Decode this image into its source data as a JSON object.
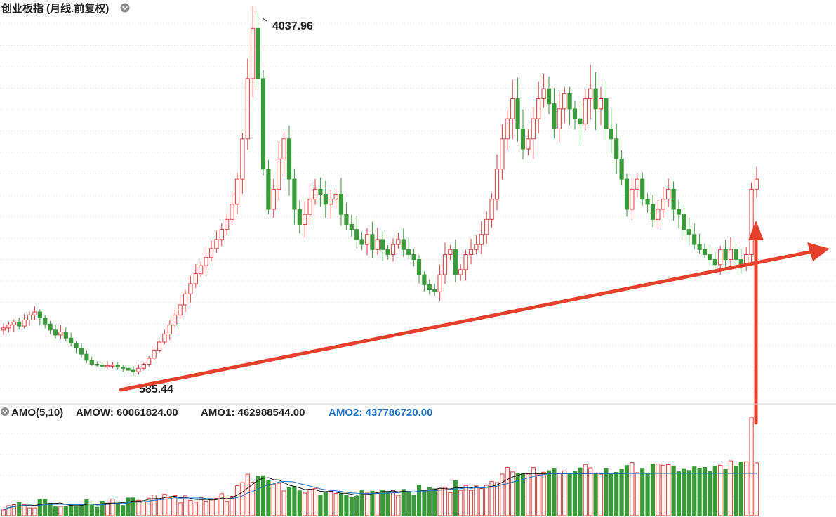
{
  "header": {
    "title": "创业板指 (月线.前复权)",
    "dropdown_icon": "chevron-down-icon"
  },
  "indicator_bar": {
    "name": "AMO(5,10)",
    "amow_label": "AMOW: 60061824.00",
    "amo1_label": "AMO1: 462988544.00",
    "amo2_label": "AMO2: 437786720.00",
    "toggle_icon": "chevron-down-icon"
  },
  "colors": {
    "up": "#e03a3a",
    "down": "#3a9a3a",
    "arrow": "#e4402b",
    "ma_black": "#111111",
    "ma_blue": "#1a73c8"
  },
  "chart_data": {
    "type": "candlestick",
    "title": "创业板指 (月线.前复权)",
    "annotations": [
      {
        "text": "4037.96",
        "note": "all-time high"
      },
      {
        "text": "585.44",
        "note": "all-time low"
      }
    ],
    "price_range": [
      300,
      4100
    ],
    "closes": [
      1020,
      1050,
      1080,
      1040,
      1100,
      1150,
      1180,
      1120,
      1060,
      1000,
      950,
      980,
      920,
      870,
      820,
      760,
      700,
      660,
      650,
      640,
      645,
      650,
      630,
      620,
      600,
      585,
      620,
      660,
      720,
      800,
      880,
      960,
      1050,
      1150,
      1250,
      1360,
      1460,
      1560,
      1640,
      1720,
      1810,
      1900,
      2000,
      2100,
      2250,
      2500,
      2900,
      3500,
      4000,
      3500,
      2600,
      2200,
      2400,
      2700,
      2900,
      2500,
      2200,
      2050,
      2150,
      2300,
      2400,
      2350,
      2250,
      2300,
      2350,
      2150,
      2050,
      2000,
      1900,
      1850,
      1950,
      1800,
      1900,
      1800,
      1750,
      1850,
      1900,
      1800,
      1750,
      1700,
      1550,
      1450,
      1400,
      1380,
      1550,
      1750,
      1800,
      1550,
      1600,
      1750,
      1800,
      1850,
      1950,
      2100,
      2300,
      2600,
      2900,
      3100,
      3300,
      3000,
      2800,
      2900,
      3100,
      3300,
      3400,
      3250,
      3000,
      3200,
      3350,
      3200,
      3100,
      3050,
      3300,
      3400,
      3200,
      3300,
      3000,
      2900,
      2700,
      2500,
      2200,
      2400,
      2500,
      2300,
      2250,
      2100,
      2200,
      2300,
      2400,
      2200,
      2150,
      2000,
      1950,
      1850,
      1800,
      1750,
      1700,
      1650,
      1800,
      1700,
      1800,
      1700,
      1650,
      1750,
      2400,
      2500
    ]
  }
}
